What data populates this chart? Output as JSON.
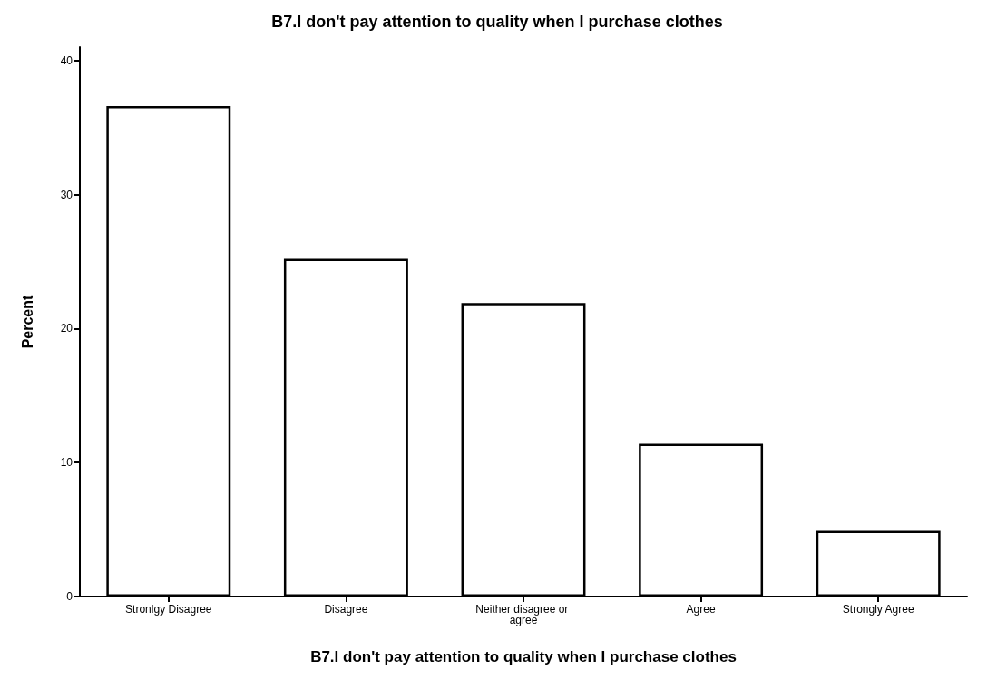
{
  "chart_data": {
    "type": "bar",
    "title": "B7.I don't pay attention to quality when I purchase clothes",
    "xlabel": "B7.I don't pay attention to quality when I purchase clothes",
    "ylabel": "Percent",
    "categories": [
      "Stronlgy Disagree",
      "Disagree",
      "Neither disagree or agree",
      "Agree",
      "Strongly Agree"
    ],
    "values": [
      36.6,
      25.2,
      21.9,
      11.4,
      4.9
    ],
    "color": "#ffffff",
    "ylim": [
      0,
      41
    ],
    "yticks": [
      0,
      10,
      20,
      30,
      40
    ],
    "grid": false
  }
}
